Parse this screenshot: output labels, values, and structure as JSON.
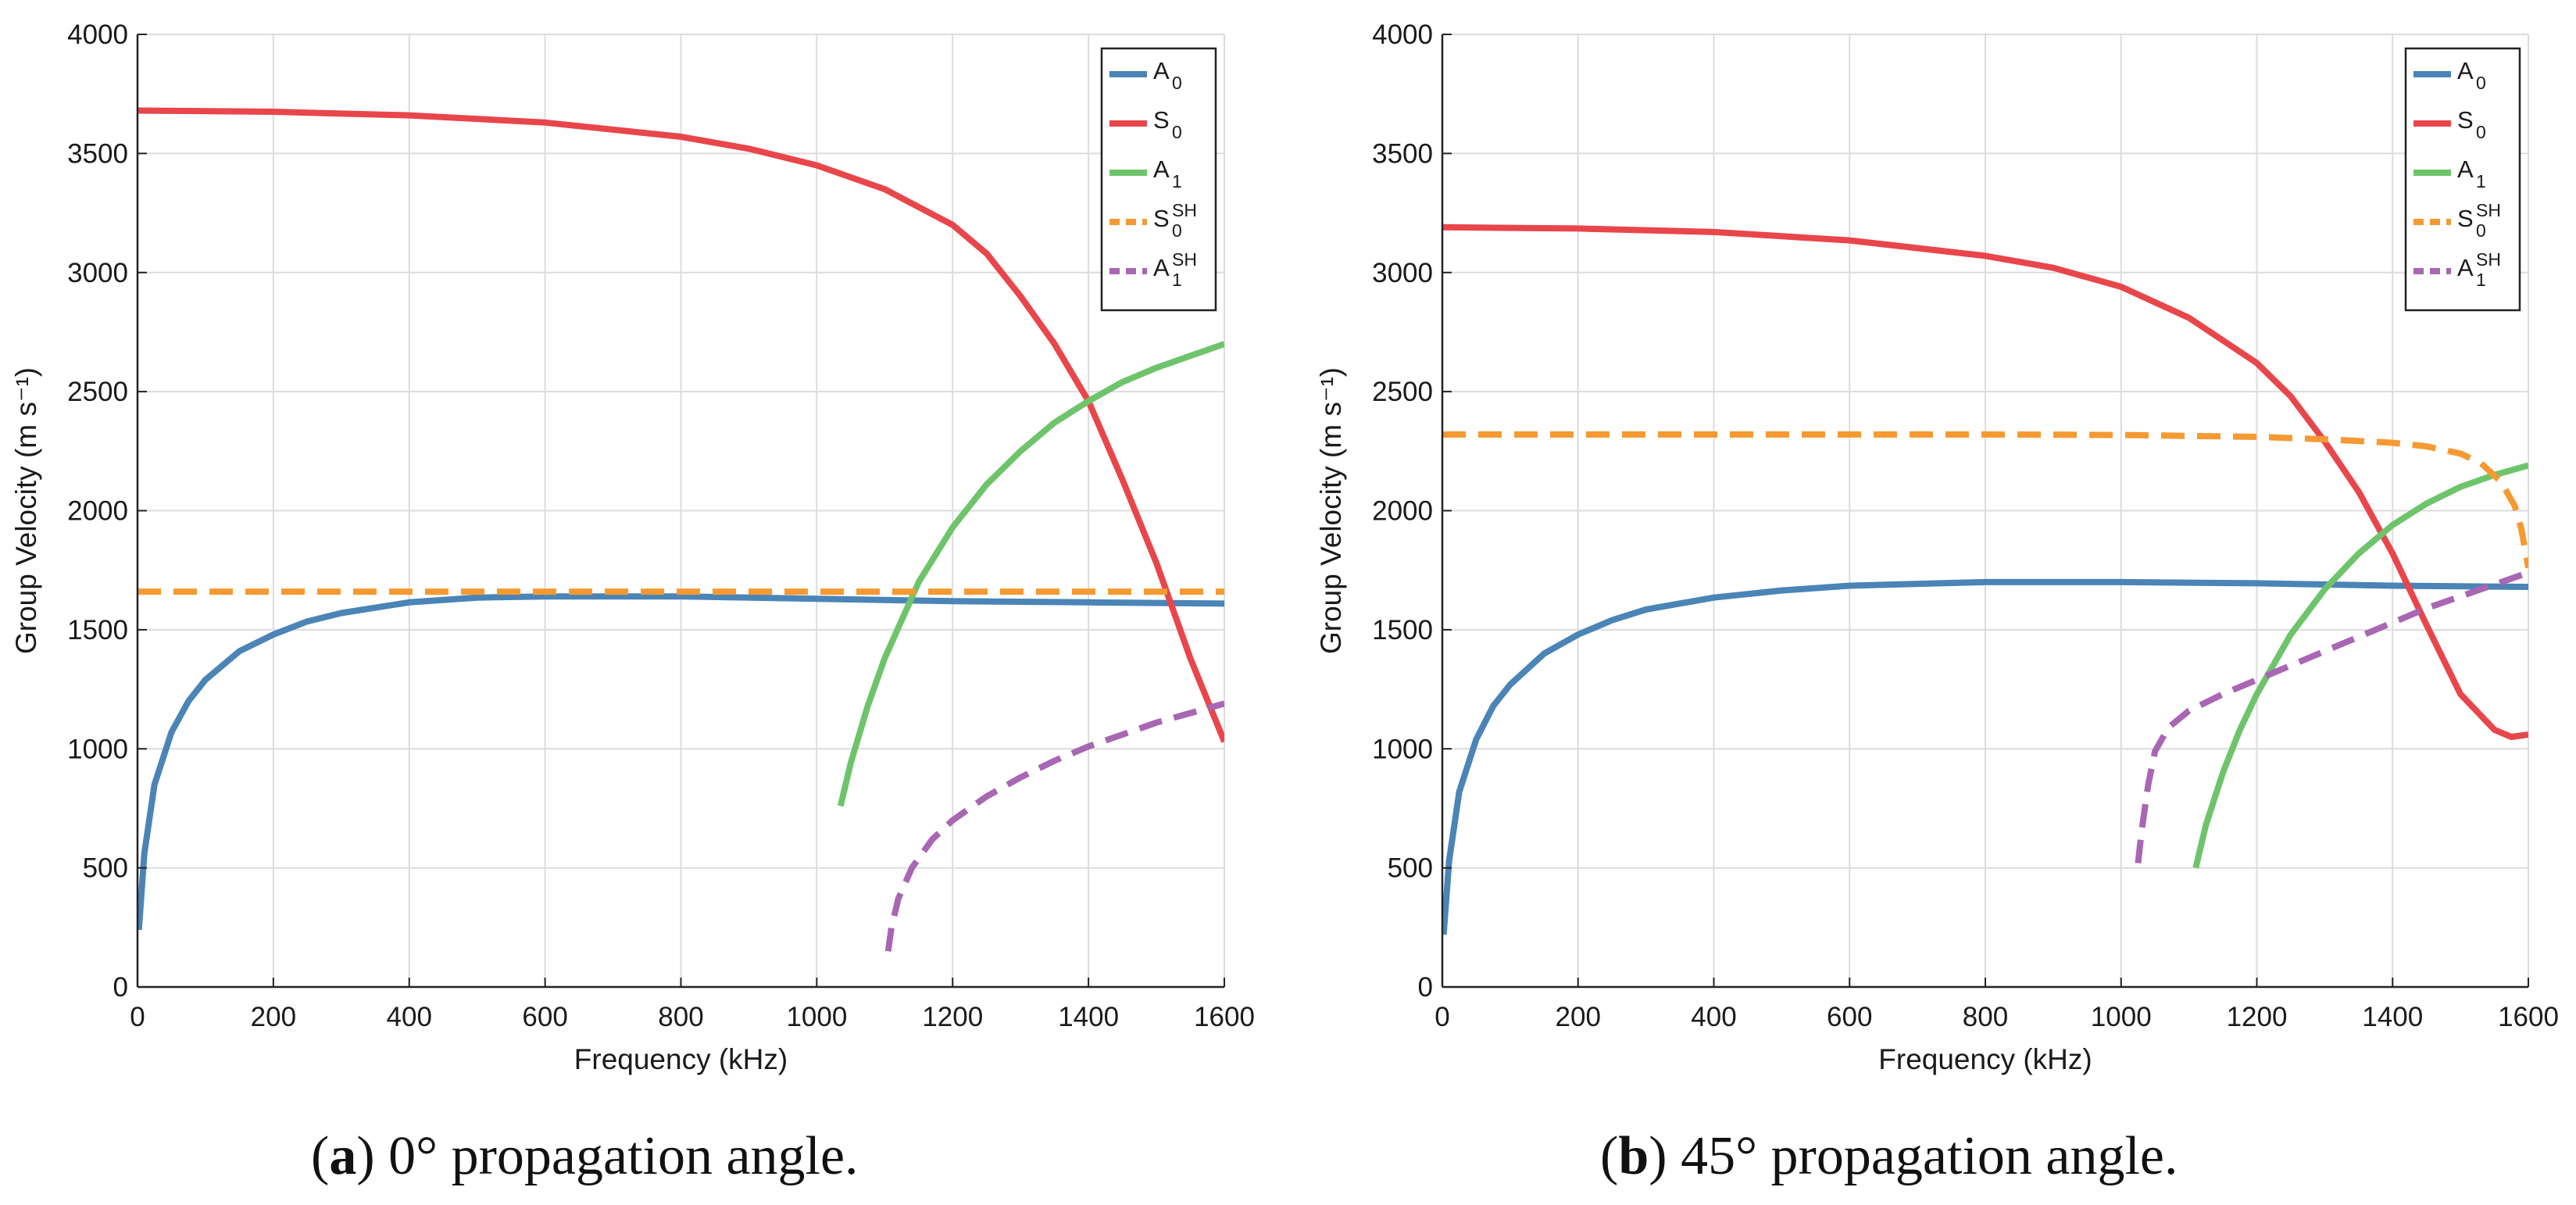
{
  "chart_data": [
    {
      "type": "line",
      "panel": "a",
      "caption_label": "a",
      "caption_text": "0° propagation angle.",
      "xlabel": "Frequency (kHz)",
      "ylabel": "Group Velocity (m s⁻¹)",
      "xlim": [
        0,
        1600
      ],
      "ylim": [
        0,
        4000
      ],
      "xticks": [
        0,
        200,
        400,
        600,
        800,
        1000,
        1200,
        1400,
        1600
      ],
      "yticks": [
        0,
        500,
        1000,
        1500,
        2000,
        2500,
        3000,
        3500,
        4000
      ],
      "grid": true,
      "legend_position": "top-right",
      "series": [
        {
          "name": "A0",
          "base": "A",
          "sub": "0",
          "sup": "",
          "color": "#4b84b6",
          "dash": false,
          "x": [
            2,
            10,
            25,
            50,
            75,
            100,
            150,
            200,
            250,
            300,
            400,
            500,
            600,
            800,
            1000,
            1200,
            1400,
            1600
          ],
          "y": [
            240,
            560,
            850,
            1070,
            1200,
            1290,
            1410,
            1480,
            1535,
            1570,
            1615,
            1635,
            1640,
            1640,
            1630,
            1620,
            1615,
            1610
          ]
        },
        {
          "name": "S0",
          "base": "S",
          "sub": "0",
          "sup": "",
          "color": "#e8464b",
          "dash": false,
          "x": [
            0,
            200,
            400,
            600,
            800,
            900,
            1000,
            1100,
            1200,
            1250,
            1300,
            1350,
            1400,
            1450,
            1500,
            1550,
            1600
          ],
          "y": [
            3680,
            3675,
            3660,
            3630,
            3570,
            3520,
            3450,
            3350,
            3200,
            3080,
            2900,
            2700,
            2460,
            2130,
            1780,
            1380,
            1030
          ]
        },
        {
          "name": "A1",
          "base": "A",
          "sub": "1",
          "sup": "",
          "color": "#6ec46b",
          "dash": false,
          "x": [
            1035,
            1050,
            1075,
            1100,
            1150,
            1200,
            1250,
            1300,
            1350,
            1400,
            1450,
            1500,
            1550,
            1600
          ],
          "y": [
            760,
            940,
            1180,
            1380,
            1700,
            1930,
            2110,
            2250,
            2370,
            2460,
            2540,
            2600,
            2650,
            2700
          ]
        },
        {
          "name": "S0SH",
          "base": "S",
          "sub": "0",
          "sup": "SH",
          "color": "#f59a32",
          "dash": true,
          "x": [
            0,
            400,
            800,
            1200,
            1600
          ],
          "y": [
            1660,
            1660,
            1660,
            1660,
            1660
          ]
        },
        {
          "name": "A1SH",
          "base": "A",
          "sub": "1",
          "sup": "SH",
          "color": "#a866b3",
          "dash": true,
          "x": [
            1105,
            1110,
            1120,
            1140,
            1170,
            1200,
            1250,
            1300,
            1350,
            1400,
            1450,
            1500,
            1550,
            1600
          ],
          "y": [
            150,
            250,
            370,
            500,
            620,
            700,
            800,
            880,
            950,
            1010,
            1060,
            1110,
            1150,
            1190
          ]
        }
      ]
    },
    {
      "type": "line",
      "panel": "b",
      "caption_label": "b",
      "caption_text": "45° propagation angle.",
      "xlabel": "Frequency (kHz)",
      "ylabel": "Group Velocity (m s⁻¹)",
      "xlim": [
        0,
        1600
      ],
      "ylim": [
        0,
        4000
      ],
      "xticks": [
        0,
        200,
        400,
        600,
        800,
        1000,
        1200,
        1400,
        1600
      ],
      "yticks": [
        0,
        500,
        1000,
        1500,
        2000,
        2500,
        3000,
        3500,
        4000
      ],
      "grid": true,
      "legend_position": "top-right",
      "series": [
        {
          "name": "A0",
          "base": "A",
          "sub": "0",
          "sup": "",
          "color": "#4b84b6",
          "dash": false,
          "x": [
            2,
            10,
            25,
            50,
            75,
            100,
            150,
            200,
            250,
            300,
            400,
            500,
            600,
            800,
            1000,
            1200,
            1400,
            1600
          ],
          "y": [
            220,
            530,
            820,
            1040,
            1180,
            1270,
            1400,
            1480,
            1540,
            1585,
            1635,
            1665,
            1685,
            1700,
            1700,
            1695,
            1685,
            1680
          ]
        },
        {
          "name": "S0",
          "base": "S",
          "sub": "0",
          "sup": "",
          "color": "#e8464b",
          "dash": false,
          "x": [
            0,
            200,
            400,
            600,
            800,
            900,
            1000,
            1100,
            1200,
            1250,
            1300,
            1350,
            1400,
            1450,
            1500,
            1550,
            1575,
            1600
          ],
          "y": [
            3190,
            3185,
            3170,
            3135,
            3070,
            3020,
            2940,
            2810,
            2620,
            2480,
            2290,
            2080,
            1820,
            1520,
            1230,
            1080,
            1050,
            1060
          ]
        },
        {
          "name": "A1",
          "base": "A",
          "sub": "1",
          "sup": "",
          "color": "#6ec46b",
          "dash": false,
          "x": [
            1110,
            1125,
            1150,
            1175,
            1200,
            1250,
            1300,
            1350,
            1400,
            1450,
            1500,
            1550,
            1600
          ],
          "y": [
            500,
            680,
            900,
            1080,
            1230,
            1480,
            1670,
            1820,
            1940,
            2030,
            2100,
            2150,
            2190
          ]
        },
        {
          "name": "S0SH",
          "base": "S",
          "sub": "0",
          "sup": "SH",
          "color": "#f59a32",
          "dash": true,
          "x": [
            0,
            400,
            800,
            1000,
            1200,
            1300,
            1400,
            1450,
            1500,
            1530,
            1560,
            1580,
            1590,
            1600
          ],
          "y": [
            2320,
            2320,
            2320,
            2318,
            2310,
            2300,
            2285,
            2270,
            2240,
            2200,
            2120,
            2020,
            1920,
            1760
          ]
        },
        {
          "name": "A1SH",
          "base": "A",
          "sub": "1",
          "sup": "SH",
          "color": "#a866b3",
          "dash": true,
          "x": [
            1025,
            1030,
            1040,
            1050,
            1070,
            1100,
            1150,
            1200,
            1250,
            1300,
            1350,
            1400,
            1450,
            1500,
            1550,
            1600
          ],
          "y": [
            520,
            650,
            850,
            990,
            1090,
            1160,
            1230,
            1290,
            1350,
            1410,
            1470,
            1530,
            1590,
            1640,
            1690,
            1740
          ]
        }
      ]
    }
  ]
}
